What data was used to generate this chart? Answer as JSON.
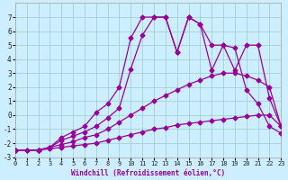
{
  "background_color": "#cceeff",
  "grid_color": "#99cccc",
  "line_color": "#990099",
  "xlabel": "Windchill (Refroidissement éolien,°C)",
  "xlim": [
    0,
    23
  ],
  "ylim": [
    -3,
    8
  ],
  "xticks": [
    0,
    1,
    2,
    3,
    4,
    5,
    6,
    7,
    8,
    9,
    10,
    11,
    12,
    13,
    14,
    15,
    16,
    17,
    18,
    19,
    20,
    21,
    22,
    23
  ],
  "yticks": [
    -3,
    -2,
    -1,
    0,
    1,
    2,
    3,
    4,
    5,
    6,
    7
  ],
  "line1_x": [
    0,
    1,
    2,
    3,
    4,
    5,
    6,
    7,
    8,
    9,
    10,
    11,
    12,
    13,
    14,
    15,
    16,
    17,
    18,
    19,
    20,
    21,
    22,
    23
  ],
  "line1_y": [
    -2.5,
    -2.5,
    -2.5,
    -2.4,
    -2.3,
    -2.2,
    -2.1,
    -2.0,
    -1.8,
    -1.6,
    -1.4,
    -1.2,
    -1.0,
    -0.9,
    -0.7,
    -0.6,
    -0.5,
    -0.4,
    -0.3,
    -0.2,
    -0.1,
    -0.0,
    0.0,
    -0.8
  ],
  "line2_x": [
    0,
    1,
    2,
    3,
    4,
    5,
    6,
    7,
    8,
    9,
    10,
    11,
    12,
    13,
    14,
    15,
    16,
    17,
    18,
    19,
    20,
    21,
    22,
    23
  ],
  "line2_y": [
    -2.5,
    -2.5,
    -2.5,
    -2.3,
    -2.1,
    -1.9,
    -1.6,
    -1.4,
    -1.0,
    -0.5,
    0.0,
    0.5,
    1.0,
    1.4,
    1.8,
    2.2,
    2.5,
    2.8,
    3.0,
    3.0,
    2.8,
    2.5,
    2.0,
    -0.8
  ],
  "line3_x": [
    0,
    2,
    3,
    4,
    5,
    6,
    7,
    8,
    9,
    10,
    11,
    12,
    13,
    14,
    15,
    16,
    17,
    18,
    19,
    20,
    21,
    22,
    23
  ],
  "line3_y": [
    -2.5,
    -2.5,
    -2.3,
    -1.8,
    -1.5,
    -1.2,
    -0.8,
    -0.2,
    0.5,
    3.3,
    5.7,
    7.0,
    7.0,
    4.5,
    7.0,
    6.5,
    5.0,
    5.0,
    3.2,
    5.0,
    5.0,
    1.2,
    -0.8
  ],
  "line4_x": [
    0,
    2,
    3,
    4,
    5,
    6,
    7,
    8,
    9,
    10,
    11,
    12,
    13,
    14,
    15,
    16,
    17,
    18,
    19,
    20,
    21,
    22,
    23
  ],
  "line4_y": [
    -2.5,
    -2.5,
    -2.3,
    -1.6,
    -1.2,
    -0.8,
    0.2,
    0.8,
    2.0,
    5.5,
    7.0,
    7.0,
    7.0,
    4.5,
    7.0,
    6.5,
    3.2,
    5.0,
    4.8,
    1.8,
    0.8,
    -0.8,
    -1.3
  ],
  "markersize": 2.5,
  "linewidth": 0.9,
  "tick_fontsize": 5,
  "xlabel_fontsize": 5.5
}
